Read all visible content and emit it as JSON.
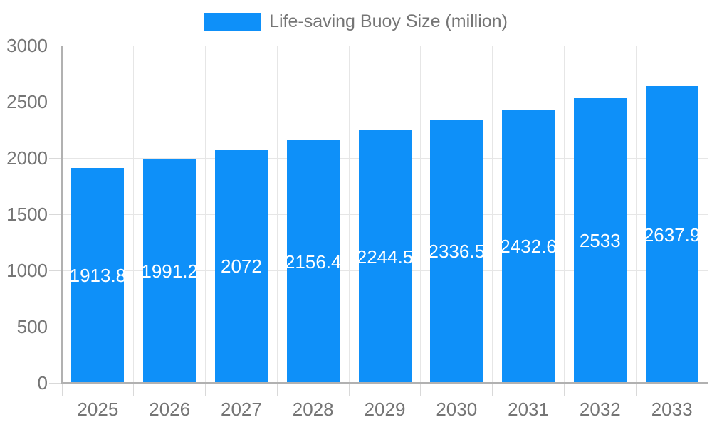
{
  "legend": {
    "position": "top-center",
    "label": "Life-saving Buoy Size (million)"
  },
  "chart_data": {
    "type": "bar",
    "title": "Life-saving Buoy Size (million)",
    "xlabel": "",
    "ylabel": "",
    "categories": [
      "2025",
      "2026",
      "2027",
      "2028",
      "2029",
      "2030",
      "2031",
      "2032",
      "2033"
    ],
    "values": [
      1913.8,
      1991.2,
      2072,
      2156.4,
      2244.5,
      2336.5,
      2432.6,
      2533,
      2637.9
    ],
    "value_labels": [
      "1913.8",
      "1991.2",
      "2072",
      "2156.4",
      "2244.5",
      "2336.5",
      "2432.6",
      "2533",
      "2637.9"
    ],
    "series": [
      {
        "name": "Life-saving Buoy Size (million)",
        "values": [
          1913.8,
          1991.2,
          2072,
          2156.4,
          2244.5,
          2336.5,
          2432.6,
          2533,
          2637.9
        ]
      }
    ],
    "ylim": [
      0,
      3000
    ],
    "yticks": [
      0,
      500,
      1000,
      1500,
      2000,
      2500,
      3000
    ],
    "grid": true,
    "legend_position": "top-center",
    "colors": {
      "bar": "#0e90f9",
      "gridline": "#e6e6e6",
      "tick": "#d9d9d9",
      "axis_line": "#b1b1b1",
      "axis_text": "#757575",
      "value_label_text": "#ffffff",
      "background": "#ffffff"
    }
  }
}
